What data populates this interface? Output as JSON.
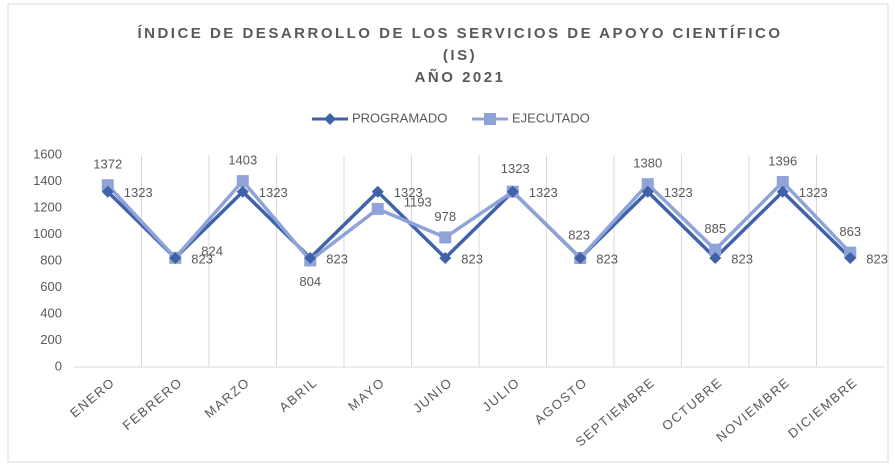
{
  "chart_data": {
    "type": "line",
    "title": [
      "ÍNDICE DE DESARROLLO DE LOS SERVICIOS DE APOYO CIENTÍFICO",
      "(IS)",
      "AÑO 2021"
    ],
    "categories": [
      "ENERO",
      "FEBRERO",
      "MARZO",
      "ABRIL",
      "MAYO",
      "JUNIO",
      "JULIO",
      "AGOSTO",
      "SEPTIEMBRE",
      "OCTUBRE",
      "NOVIEMBRE",
      "DICIEMBRE"
    ],
    "series": [
      {
        "name": "PROGRAMADO",
        "color": "#3f62a8",
        "marker": "diamond",
        "values": [
          1323,
          823,
          1323,
          823,
          1323,
          823,
          1323,
          823,
          1323,
          823,
          1323,
          823
        ]
      },
      {
        "name": "EJECUTADO",
        "color": "#8fa3d9",
        "marker": "square",
        "values": [
          1372,
          824,
          1403,
          804,
          1193,
          978,
          1323,
          823,
          1380,
          885,
          1396,
          863
        ]
      }
    ],
    "ylim": [
      0,
      1600
    ],
    "yticks": [
      0,
      200,
      400,
      600,
      800,
      1000,
      1200,
      1400,
      1600
    ],
    "grid": "vertical",
    "legend": "top"
  }
}
